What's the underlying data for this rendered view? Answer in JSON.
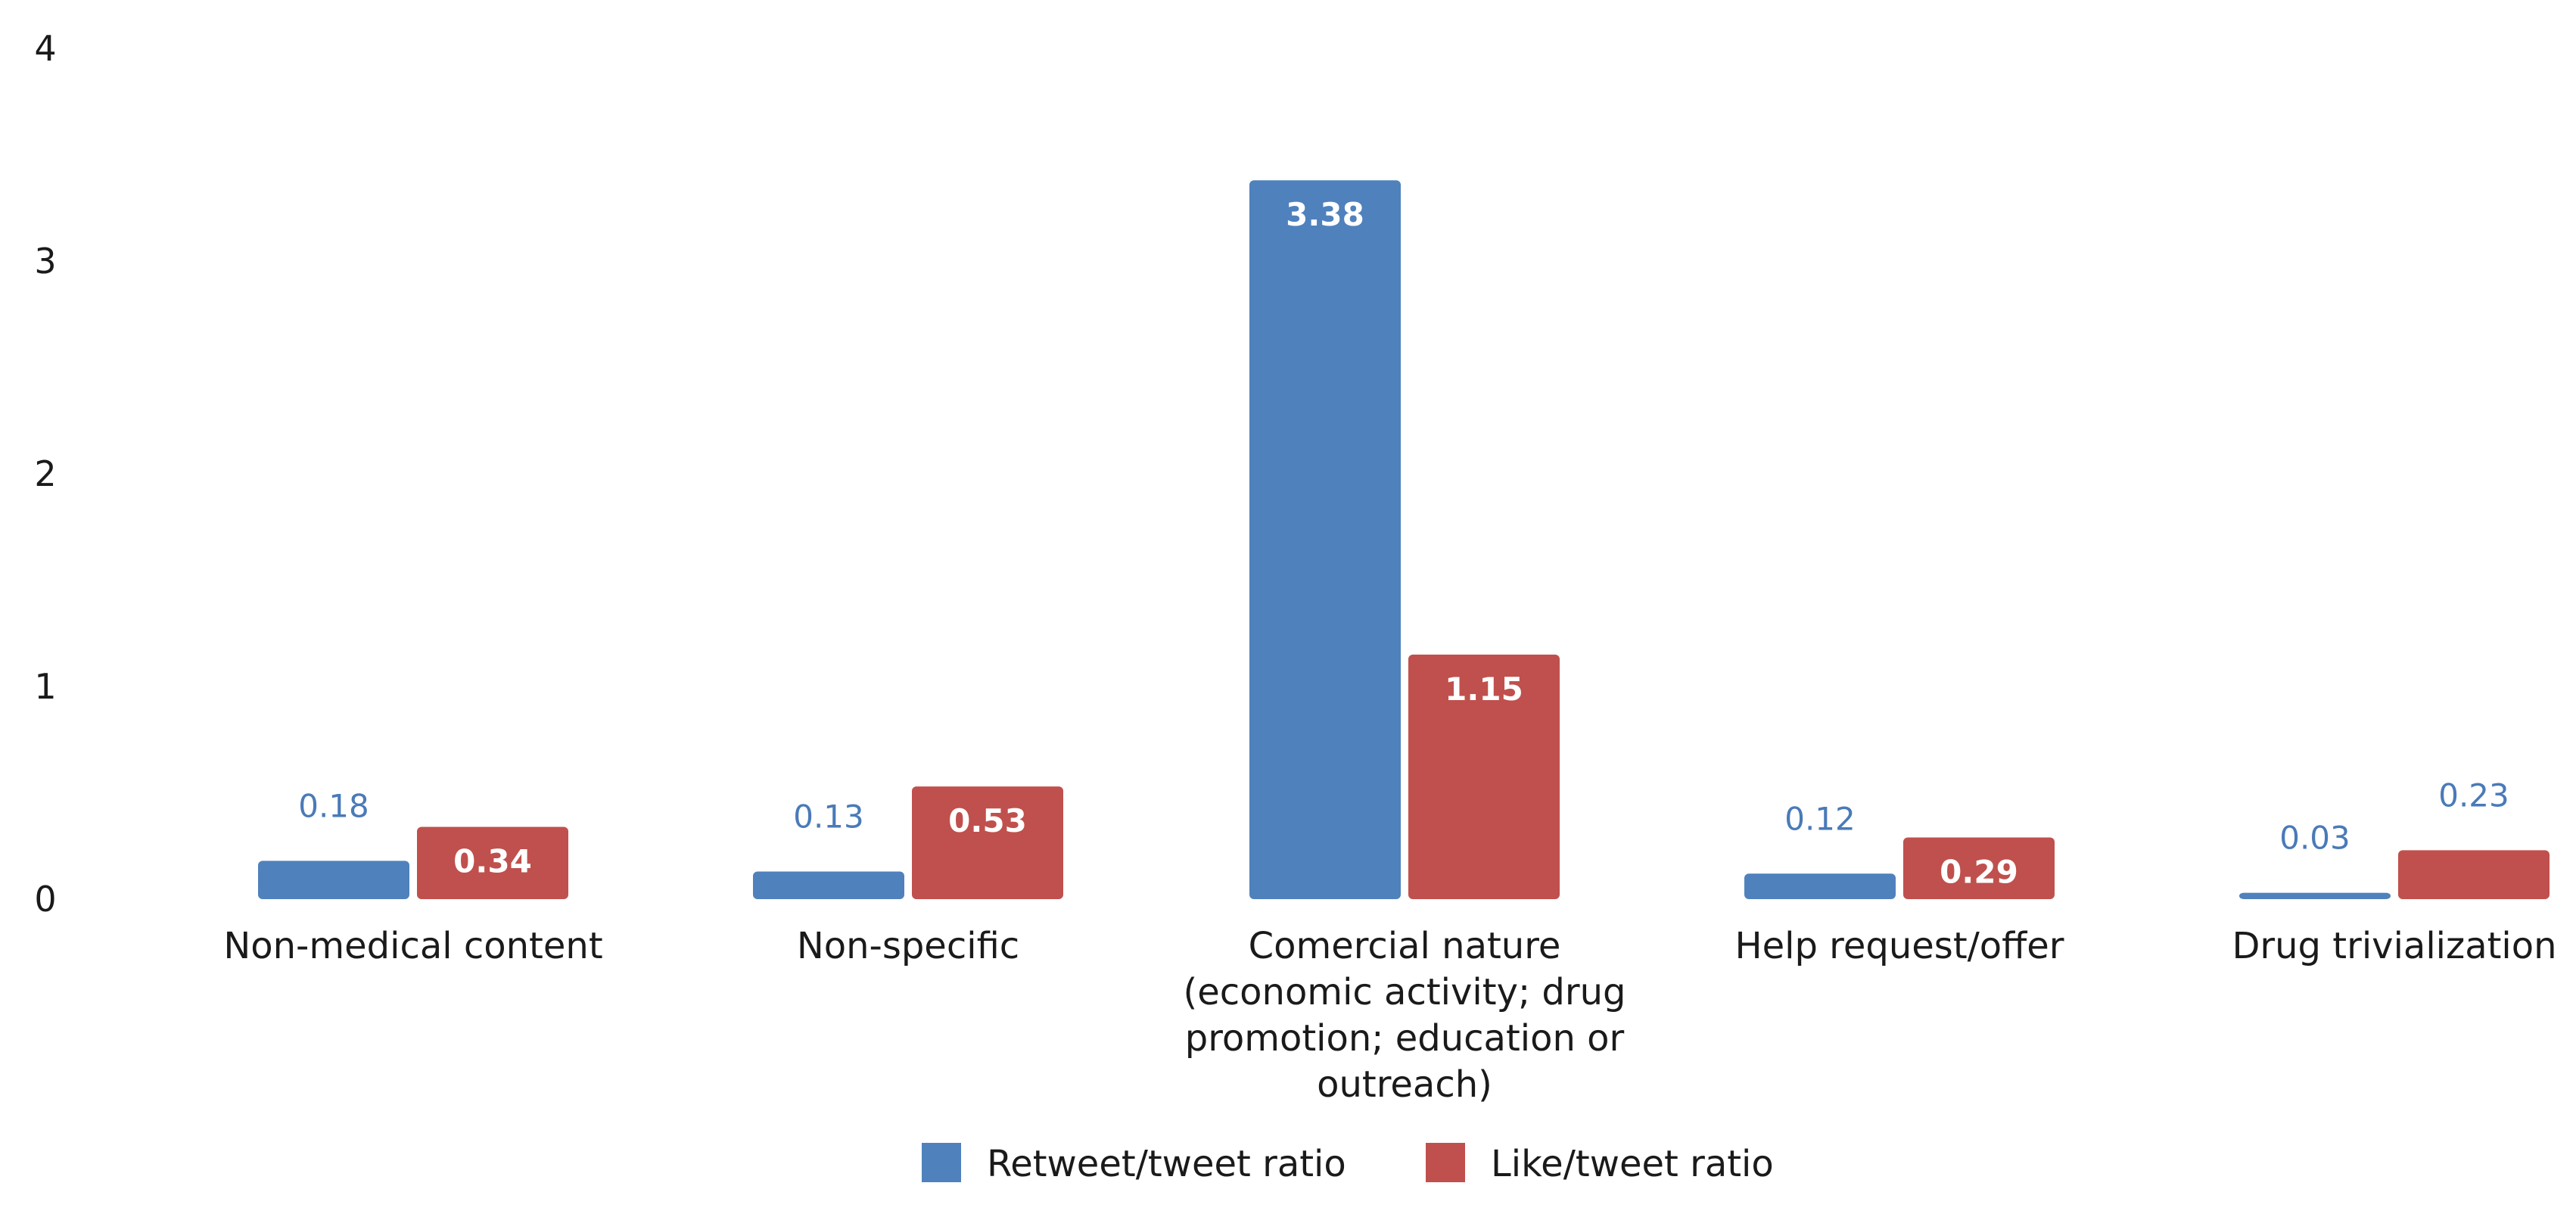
{
  "chart_data": {
    "type": "bar",
    "title": "",
    "xlabel": "",
    "ylabel": "",
    "ylim": [
      0,
      4
    ],
    "yticks": [
      "0",
      "1",
      "2",
      "3",
      "4"
    ],
    "grid": false,
    "legend_position": "bottom",
    "categories": [
      [
        "Non-medical content"
      ],
      [
        "Non-specific"
      ],
      [
        "Comercial nature",
        "(economic activity; drug",
        "promotion; education or",
        "outreach)"
      ],
      [
        "Help request/offer"
      ],
      [
        "Drug trivialization"
      ]
    ],
    "series": [
      {
        "name": "Retweet/tweet ratio",
        "color": "#4f81bd",
        "values": [
          0.18,
          0.13,
          3.38,
          0.12,
          0.03
        ],
        "labels": [
          "0.18",
          "0.13",
          "3.38",
          "0.12",
          "0.03"
        ]
      },
      {
        "name": "Like/tweet ratio",
        "color": "#c0504d",
        "values": [
          0.34,
          0.53,
          1.15,
          0.29,
          0.23
        ],
        "labels": [
          "0.34",
          "0.53",
          "1.15",
          "0.29",
          "0.23"
        ]
      }
    ]
  }
}
